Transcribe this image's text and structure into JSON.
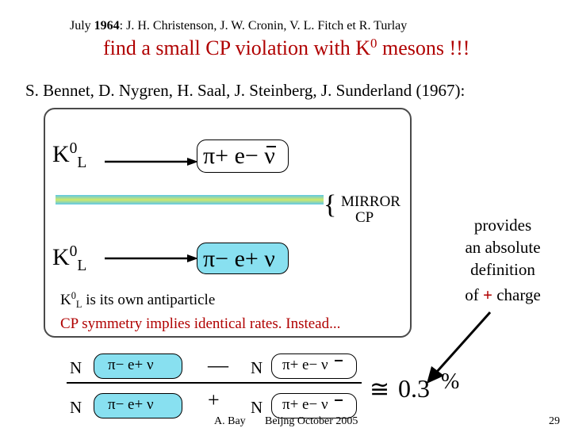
{
  "history": {
    "line1_a": "July ",
    "line1_year": "1964",
    "line1_b": ": J. H. Christenson, J. W. Cronin, V. L. Fitch et  R.  Turlay",
    "line2_a": "find a small CP violation with K",
    "line2_sup": "0",
    "line2_b": " mesons !!!"
  },
  "experiment": {
    "authors": "S. Bennet, D. Nygren, H. Saal, J. Steinberg, J. Sunderland (1967):"
  },
  "box": {
    "k_symbol": "K",
    "k_sup": "0",
    "k_sub": "L",
    "decay1": "π+ e− ν",
    "decay2": "π− e+ ν",
    "mirror_label": "MIRROR",
    "mirror_sub": "CP",
    "own_antiparticle_sup": "0",
    "own_antiparticle_sub": "L",
    "own_antiparticle_text": " is its own antiparticle",
    "cp_symmetry": "CP symmetry implies identical rates.  Instead..."
  },
  "callout": {
    "line1": "provides",
    "line2": "an absolute",
    "line3": "definition",
    "line4_a": "of ",
    "line4_plus": "+",
    "line4_b": " charge"
  },
  "formula": {
    "n": "N",
    "minus": "—",
    "plus": "+",
    "pi_minus_e_plus": "π− e+ ν",
    "pi_plus_e_minus": "π+ e− ν",
    "approx": "≅",
    "result": "0.3",
    "percent": "%"
  },
  "footer": {
    "author": "A. Bay",
    "event": "Beijng October 2005",
    "page": "29"
  },
  "colors": {
    "violation_red": "#b00000",
    "box_border": "#4a4a4a"
  }
}
